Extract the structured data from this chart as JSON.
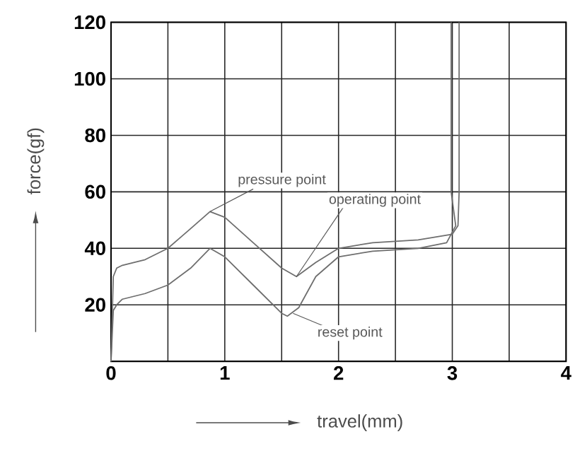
{
  "chart_data": {
    "type": "line",
    "xlabel": "travel(mm)",
    "ylabel": "force(gf)",
    "xlim": [
      0,
      4
    ],
    "ylim": [
      0,
      120
    ],
    "xticks": [
      0,
      {
        "value": 0.5,
        "label": null
      },
      1,
      {
        "value": 1.5,
        "label": null
      },
      2,
      {
        "value": 2.5,
        "label": null
      },
      3,
      {
        "value": 3.5,
        "label": null
      },
      4
    ],
    "yticks": [
      {
        "value": 0,
        "label": null
      },
      20,
      40,
      60,
      80,
      100,
      120
    ],
    "grid": true,
    "series": [
      {
        "color": "#6e6e6e",
        "x": [
          0,
          0.02,
          0.05,
          0.1,
          0.3,
          0.5,
          0.7,
          0.87,
          1.0,
          1.25,
          1.5,
          1.63,
          1.8,
          2.0,
          2.3,
          2.7,
          3.0,
          3.05,
          3.06,
          3.06
        ],
        "values": [
          0,
          30,
          33,
          34,
          36,
          40,
          47,
          53,
          51,
          42,
          33,
          30,
          35,
          40,
          42,
          43,
          45,
          48,
          60,
          120
        ]
      },
      {
        "color": "#6e6e6e",
        "x": [
          0,
          0.02,
          0.05,
          0.1,
          0.3,
          0.5,
          0.7,
          0.87,
          1.0,
          1.25,
          1.5,
          1.55,
          1.65,
          1.8,
          2.0,
          2.3,
          2.7,
          2.95,
          3.03,
          2.99,
          2.99
        ],
        "values": [
          0,
          18,
          20,
          22,
          24,
          27,
          33,
          40,
          37,
          27,
          17,
          16,
          19,
          30,
          37,
          39,
          40,
          42,
          48,
          60,
          120
        ]
      }
    ],
    "annotations": [
      {
        "text": "pressure point",
        "x": 0.87,
        "y": 53
      },
      {
        "text": "operating point",
        "x": 1.63,
        "y": 30
      },
      {
        "text": "reset point",
        "x": 1.6,
        "y": 17
      }
    ]
  }
}
